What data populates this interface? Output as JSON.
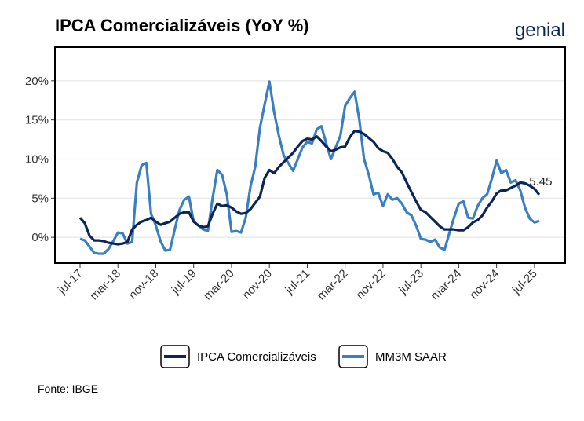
{
  "chart_data": {
    "type": "line",
    "title": "IPCA Comercializáveis (YoY %)",
    "logo": "genial",
    "source": "Fonte: IBGE",
    "annotation": "5.45",
    "categories": [
      "jul-17",
      null,
      null,
      null,
      null,
      null,
      null,
      null,
      "mar-18",
      null,
      null,
      null,
      null,
      null,
      null,
      null,
      "nov-18",
      null,
      null,
      null,
      null,
      null,
      null,
      null,
      "jul-19",
      null,
      null,
      null,
      null,
      null,
      null,
      null,
      "mar-20",
      null,
      null,
      null,
      null,
      null,
      null,
      null,
      "nov-20",
      null,
      null,
      null,
      null,
      null,
      null,
      null,
      "jul-21",
      null,
      null,
      null,
      null,
      null,
      null,
      null,
      "mar-22",
      null,
      null,
      null,
      null,
      null,
      null,
      null,
      "nov-22",
      null,
      null,
      null,
      null,
      null,
      null,
      null,
      "jul-23",
      null,
      null,
      null,
      null,
      null,
      null,
      null,
      "mar-24",
      null,
      null,
      null,
      null,
      null,
      null,
      null,
      "nov-24",
      null,
      null,
      null,
      null,
      null,
      null,
      null,
      "jul-25",
      null
    ],
    "series": [
      {
        "name": "IPCA Comercializáveis",
        "color": "#0b2559",
        "values": [
          2.5,
          1.8,
          0.2,
          -0.4,
          -0.4,
          -0.5,
          -0.7,
          -0.8,
          -0.9,
          -0.8,
          -0.6,
          1.0,
          1.6,
          2.0,
          2.2,
          2.5,
          2.0,
          1.6,
          1.8,
          2.0,
          2.5,
          3.0,
          3.2,
          3.2,
          2.0,
          1.5,
          1.3,
          1.4,
          3.0,
          4.3,
          4.0,
          4.1,
          3.8,
          3.3,
          3.0,
          3.1,
          3.6,
          4.4,
          5.2,
          7.6,
          8.6,
          8.2,
          9.0,
          9.6,
          10.2,
          10.8,
          11.6,
          12.3,
          12.6,
          12.5,
          12.9,
          12.3,
          11.6,
          11.0,
          11.2,
          11.5,
          11.6,
          12.8,
          13.6,
          13.5,
          13.2,
          12.7,
          12.2,
          11.4,
          11.0,
          10.8,
          10.0,
          9.0,
          8.3,
          7.0,
          5.8,
          4.6,
          3.5,
          3.2,
          2.6,
          2.0,
          1.4,
          1.0,
          1.0,
          1.0,
          0.9,
          0.9,
          1.3,
          1.9,
          2.2,
          2.8,
          3.8,
          4.6,
          5.6,
          6.0,
          6.0,
          6.3,
          6.6,
          7.0,
          6.9,
          6.6,
          6.2,
          5.45
        ]
      },
      {
        "name": "MM3M SAAR",
        "color": "#3a7fc1",
        "values": [
          -0.2,
          -0.4,
          -1.2,
          -2.0,
          -2.1,
          -2.1,
          -1.5,
          -0.5,
          0.6,
          0.5,
          -0.8,
          -0.6,
          7.0,
          9.2,
          9.5,
          3.0,
          1.5,
          -0.5,
          -1.7,
          -1.6,
          1.0,
          3.5,
          4.8,
          5.2,
          2.0,
          1.5,
          1.0,
          0.8,
          5.0,
          8.6,
          8.0,
          5.5,
          0.7,
          0.8,
          0.6,
          2.5,
          6.5,
          9.0,
          14.0,
          17.0,
          19.9,
          16.0,
          13.0,
          10.5,
          9.5,
          8.5,
          10.0,
          11.5,
          12.2,
          12.0,
          13.8,
          14.2,
          12.0,
          10.0,
          11.5,
          13.0,
          16.8,
          17.8,
          18.6,
          15.0,
          10.0,
          8.0,
          5.5,
          5.7,
          4.0,
          5.5,
          4.8,
          5.0,
          4.3,
          3.2,
          2.8,
          1.5,
          -0.2,
          -0.3,
          -0.6,
          -0.3,
          -1.3,
          -1.6,
          0.5,
          2.5,
          4.3,
          4.6,
          2.5,
          2.4,
          4.0,
          5.0,
          5.5,
          7.5,
          9.8,
          8.2,
          8.6,
          7.0,
          7.3,
          6.0,
          3.8,
          2.4,
          1.9,
          2.1
        ]
      }
    ],
    "ylim": [
      -3.3,
      24.3
    ],
    "yticks": [
      {
        "value": 0,
        "label": "0%"
      },
      {
        "value": 5,
        "label": "5%"
      },
      {
        "value": 10,
        "label": "10%"
      },
      {
        "value": 15,
        "label": "15%"
      },
      {
        "value": 20,
        "label": "20%"
      }
    ],
    "grid": true,
    "legend": "bottom"
  }
}
